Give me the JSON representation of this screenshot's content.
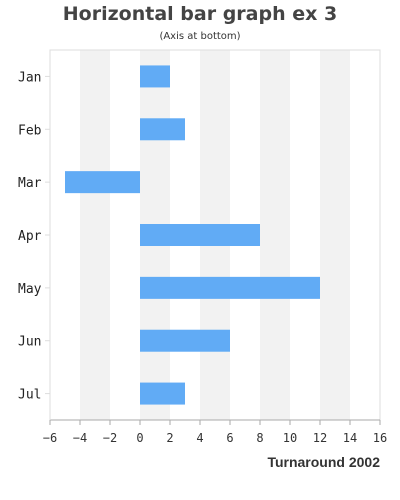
{
  "chart_data": {
    "type": "bar",
    "orientation": "horizontal",
    "title": "Horizontal bar graph ex 3",
    "subtitle": "(Axis at bottom)",
    "xlabel": "Turnaround 2002",
    "ylabel": "",
    "categories": [
      "Jan",
      "Feb",
      "Mar",
      "Apr",
      "May",
      "Jun",
      "Jul"
    ],
    "values": [
      2,
      3,
      -5,
      8,
      12,
      6,
      3
    ],
    "xlim": [
      -6,
      16
    ],
    "xticks": [
      -6,
      -4,
      -2,
      0,
      2,
      4,
      6,
      8,
      10,
      12,
      14,
      16
    ],
    "grid": "alternating vertical bands",
    "legend": "none",
    "bar_color": "#61abf5",
    "band_color": "#f2f2f2",
    "axis_color": "#aaaaaa"
  }
}
